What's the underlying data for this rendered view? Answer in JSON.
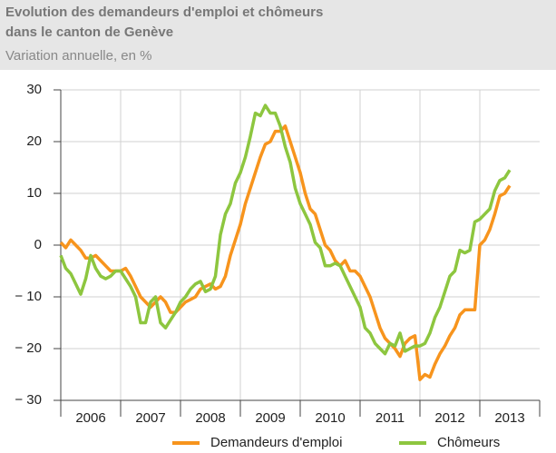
{
  "chart_data": {
    "type": "line",
    "title_lines": [
      "Evolution des demandeurs d'emploi et chômeurs",
      "dans le canton de Genève"
    ],
    "subtitle": "Variation annuelle, en %",
    "categories": [
      null,
      null,
      null,
      null,
      null,
      null,
      null,
      null,
      null,
      null,
      null,
      null,
      null,
      null,
      null,
      null,
      null,
      null,
      null,
      null,
      null,
      null,
      null,
      null,
      null,
      null,
      null,
      null,
      null,
      null,
      null,
      null,
      null,
      null,
      null,
      null,
      null,
      null,
      null,
      null,
      null,
      null,
      null,
      null,
      null,
      null,
      null,
      null,
      null,
      null,
      null,
      null,
      null,
      null,
      null,
      null,
      null,
      null,
      null,
      null,
      null,
      null,
      null,
      null,
      null,
      null,
      null,
      null,
      null,
      null,
      null,
      null,
      null,
      null,
      null,
      null,
      null,
      null,
      null,
      null,
      null,
      null,
      null,
      null,
      null,
      null,
      null,
      null,
      null,
      null,
      null
    ],
    "year_labels": [
      "2006",
      "2007",
      "2008",
      "2009",
      "2010",
      "2011",
      "2012",
      "2013"
    ],
    "series": [
      {
        "name": "Demandeurs d'emploi",
        "color": "#f7941d",
        "values": [
          0.5,
          -0.5,
          1,
          0,
          -1,
          -2.5,
          -2.5,
          -2,
          -3,
          -4,
          -5,
          -5,
          -5,
          -4.5,
          -6,
          -8,
          -10,
          -11,
          -12,
          -11,
          -10,
          -11,
          -13,
          -13,
          -12,
          -11,
          -10.5,
          -10,
          -8.5,
          -8,
          -7.5,
          -8.5,
          -8,
          -6,
          -2,
          1,
          4,
          8,
          11,
          14,
          17,
          19.5,
          20,
          22,
          22,
          23,
          20,
          17,
          14,
          10,
          7,
          6,
          3,
          0,
          -1,
          -3,
          -4,
          -3,
          -5,
          -5,
          -6,
          -8,
          -10,
          -13,
          -16,
          -18,
          -19,
          -20,
          -21.5,
          -19,
          -18,
          -17.5,
          -26,
          -25,
          -25.5,
          -23,
          -21,
          -19.5,
          -17.5,
          -16,
          -13.5,
          -12.5,
          -12.5,
          -12.5,
          0,
          1,
          3,
          6,
          9.5,
          10,
          11.5
        ]
      },
      {
        "name": "Chômeurs",
        "color": "#8dc63f",
        "values": [
          -2,
          -4.5,
          -5.5,
          -7.5,
          -9.5,
          -6.5,
          -2,
          -4.5,
          -6,
          -6.5,
          -6,
          -5,
          -5,
          -6.5,
          -8,
          -10,
          -15,
          -15,
          -11,
          -10,
          -15,
          -16,
          -14.5,
          -13,
          -11,
          -10,
          -8.5,
          -7.5,
          -7,
          -9,
          -8.5,
          -6,
          2,
          6,
          8,
          12,
          14,
          17,
          21,
          25.5,
          25,
          27,
          25.5,
          25.5,
          23,
          19,
          16,
          11,
          8,
          6,
          4,
          0.5,
          -0.5,
          -4,
          -4,
          -3.5,
          -4,
          -6,
          -8,
          -10,
          -12,
          -16,
          -17,
          -19,
          -20,
          -21,
          -19,
          -19.5,
          -17,
          -20.5,
          -20,
          -19.5,
          -19.5,
          -19,
          -17,
          -14,
          -12,
          -9,
          -6,
          -5,
          -1,
          -1.5,
          -1,
          4.5,
          5,
          6,
          7,
          10.5,
          12.5,
          13,
          14.5
        ]
      }
    ],
    "ylim": [
      -30,
      30
    ],
    "yticks": [
      {
        "value": -30,
        "label": "− 30"
      },
      {
        "value": -20,
        "label": "− 20"
      },
      {
        "value": -10,
        "label": "− 10"
      },
      0,
      10,
      20,
      30
    ],
    "grid": true
  }
}
